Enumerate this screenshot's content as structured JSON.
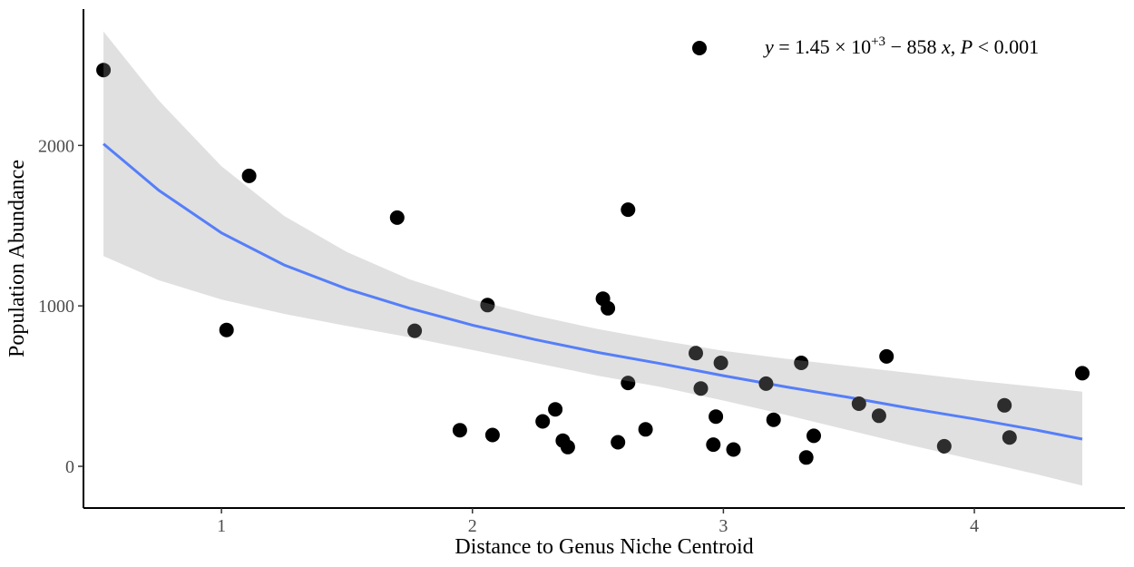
{
  "chart_data": {
    "type": "scatter",
    "xlabel": "Distance to Genus Niche Centroid",
    "ylabel": "Population Abundance",
    "xlim": [
      0.45,
      4.6
    ],
    "ylim": [
      -260,
      2850
    ],
    "x_ticks": [
      1,
      2,
      3,
      4
    ],
    "x_tick_labels": [
      "1",
      "2",
      "3",
      "4"
    ],
    "y_ticks": [
      0,
      1000,
      2000
    ],
    "y_tick_labels": [
      "0",
      "1000",
      "2000"
    ],
    "grid": false,
    "legend_position": "top-right",
    "legend": {
      "eq_y": "y",
      "eq_mid": " = 1.45 × 10",
      "eq_sup": "+3",
      "eq_rest": " − 858 ",
      "eq_x": "x",
      "eq_comma": ", ",
      "eq_p": "P",
      "eq_pval": " < 0.001"
    },
    "points": [
      {
        "x": 0.53,
        "y": 2470
      },
      {
        "x": 1.02,
        "y": 850
      },
      {
        "x": 1.11,
        "y": 1810
      },
      {
        "x": 1.7,
        "y": 1550
      },
      {
        "x": 1.77,
        "y": 845
      },
      {
        "x": 1.95,
        "y": 225
      },
      {
        "x": 2.06,
        "y": 1005
      },
      {
        "x": 2.08,
        "y": 195
      },
      {
        "x": 2.28,
        "y": 280
      },
      {
        "x": 2.33,
        "y": 355
      },
      {
        "x": 2.36,
        "y": 160
      },
      {
        "x": 2.38,
        "y": 120
      },
      {
        "x": 2.52,
        "y": 1045
      },
      {
        "x": 2.54,
        "y": 985
      },
      {
        "x": 2.58,
        "y": 150
      },
      {
        "x": 2.62,
        "y": 1600
      },
      {
        "x": 2.62,
        "y": 520
      },
      {
        "x": 2.69,
        "y": 230
      },
      {
        "x": 2.89,
        "y": 705
      },
      {
        "x": 2.91,
        "y": 485
      },
      {
        "x": 2.96,
        "y": 135
      },
      {
        "x": 2.97,
        "y": 310
      },
      {
        "x": 2.99,
        "y": 645
      },
      {
        "x": 3.04,
        "y": 105
      },
      {
        "x": 3.17,
        "y": 515
      },
      {
        "x": 3.2,
        "y": 290
      },
      {
        "x": 3.31,
        "y": 645
      },
      {
        "x": 3.33,
        "y": 55
      },
      {
        "x": 3.36,
        "y": 190
      },
      {
        "x": 3.54,
        "y": 390
      },
      {
        "x": 3.62,
        "y": 315
      },
      {
        "x": 3.65,
        "y": 685
      },
      {
        "x": 3.88,
        "y": 125
      },
      {
        "x": 4.12,
        "y": 380
      },
      {
        "x": 4.14,
        "y": 180
      },
      {
        "x": 4.43,
        "y": 580
      }
    ],
    "fit_line": {
      "x": [
        0.53,
        0.75,
        1.0,
        1.25,
        1.5,
        1.75,
        2.0,
        2.25,
        2.5,
        2.75,
        3.0,
        3.25,
        3.5,
        3.75,
        4.0,
        4.25,
        4.43
      ],
      "y": [
        2010,
        1720,
        1455,
        1255,
        1105,
        985,
        880,
        790,
        710,
        640,
        565,
        495,
        430,
        360,
        295,
        225,
        170
      ]
    },
    "confidence_band": {
      "x": [
        0.53,
        0.75,
        1.0,
        1.25,
        1.5,
        1.75,
        2.0,
        2.25,
        2.5,
        2.75,
        3.0,
        3.25,
        3.5,
        3.75,
        4.0,
        4.25,
        4.43
      ],
      "upper": [
        2710,
        2280,
        1870,
        1560,
        1335,
        1165,
        1040,
        940,
        855,
        785,
        720,
        670,
        625,
        580,
        535,
        495,
        465
      ],
      "lower": [
        1310,
        1160,
        1040,
        950,
        875,
        805,
        725,
        645,
        565,
        495,
        410,
        320,
        225,
        130,
        40,
        -50,
        -120
      ]
    },
    "colors": {
      "points": "#000000",
      "fit_line": "#3366ff",
      "band": "#e0e0e0",
      "axis": "#000000",
      "tick_label": "#4d4d4d"
    }
  }
}
